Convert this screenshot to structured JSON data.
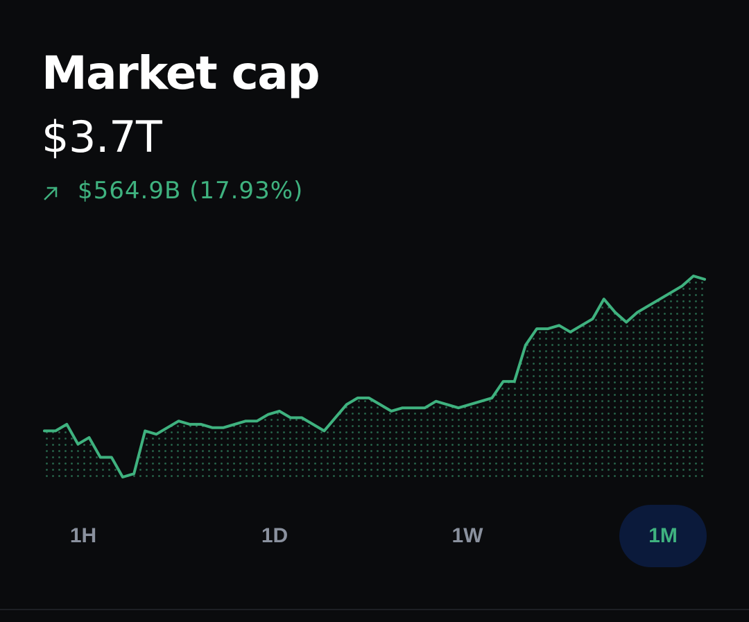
{
  "header": {
    "title": "Market cap",
    "value": "$3.7T",
    "change_text": "$564.9B (17.93%)",
    "change_direction": "up",
    "change_icon": "arrow-up-right-icon"
  },
  "colors": {
    "background": "#0a0b0d",
    "positive": "#3fb27f",
    "tab_inactive": "#8a919e",
    "tab_active_bg": "#0b1a3b"
  },
  "tabs": [
    {
      "label": "1H",
      "active": false
    },
    {
      "label": "1D",
      "active": false
    },
    {
      "label": "1W",
      "active": false
    },
    {
      "label": "1M",
      "active": true
    }
  ],
  "chart_data": {
    "type": "area",
    "title": "",
    "xlabel": "",
    "ylabel": "",
    "grid": false,
    "series": [
      {
        "values": [
          3.24,
          3.24,
          3.26,
          3.2,
          3.22,
          3.16,
          3.16,
          3.1,
          3.11,
          3.24,
          3.23,
          3.25,
          3.27,
          3.26,
          3.26,
          3.25,
          3.25,
          3.26,
          3.27,
          3.27,
          3.29,
          3.3,
          3.28,
          3.28,
          3.26,
          3.24,
          3.28,
          3.32,
          3.34,
          3.34,
          3.32,
          3.3,
          3.31,
          3.31,
          3.31,
          3.33,
          3.32,
          3.31,
          3.32,
          3.33,
          3.34,
          3.39,
          3.39,
          3.5,
          3.55,
          3.55,
          3.56,
          3.54,
          3.56,
          3.58,
          3.64,
          3.6,
          3.57,
          3.6,
          3.62,
          3.64,
          3.66,
          3.68,
          3.71,
          3.7
        ]
      }
    ]
  }
}
